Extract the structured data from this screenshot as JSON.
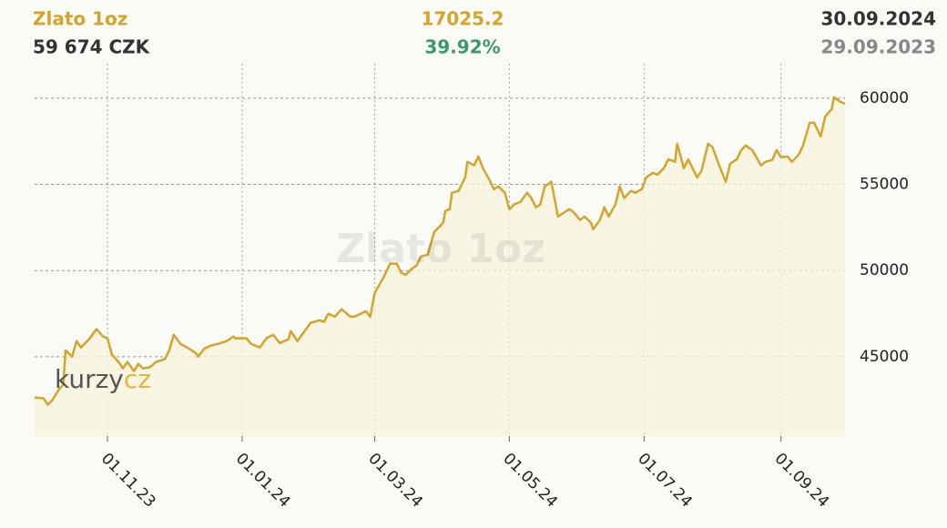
{
  "chart_data": {
    "type": "line",
    "title": "Zlato 1oz",
    "current_price": "59 674 CZK",
    "change": "17025.2",
    "change_percent": "39.92%",
    "end_date": "30.09.2024",
    "start_date": "29.09.2023",
    "logo": {
      "text": "kurzy",
      "suffix": "cz"
    },
    "x": [
      "2023-09-29",
      "2023-10-03",
      "2023-10-05",
      "2023-10-07",
      "2023-10-10",
      "2023-10-12",
      "2023-10-13",
      "2023-10-16",
      "2023-10-18",
      "2023-10-20",
      "2023-10-24",
      "2023-10-27",
      "2023-10-30",
      "2023-11-01",
      "2023-11-03",
      "2023-11-06",
      "2023-11-08",
      "2023-11-10",
      "2023-11-13",
      "2023-11-15",
      "2023-11-17",
      "2023-11-20",
      "2023-11-23",
      "2023-11-27",
      "2023-11-29",
      "2023-12-01",
      "2023-12-04",
      "2023-12-07",
      "2023-12-11",
      "2023-12-12",
      "2023-12-15",
      "2023-12-18",
      "2023-12-21",
      "2023-12-25",
      "2023-12-28",
      "2023-12-29",
      "2024-01-03",
      "2024-01-05",
      "2024-01-09",
      "2024-01-12",
      "2024-01-15",
      "2024-01-18",
      "2024-01-22",
      "2024-01-23",
      "2024-01-26",
      "2024-01-29",
      "2024-02-01",
      "2024-02-05",
      "2024-02-07",
      "2024-02-09",
      "2024-02-12",
      "2024-02-15",
      "2024-02-19",
      "2024-02-21",
      "2024-02-26",
      "2024-02-28",
      "2024-03-01",
      "2024-03-05",
      "2024-03-08",
      "2024-03-11",
      "2024-03-13",
      "2024-03-15",
      "2024-03-18",
      "2024-03-20",
      "2024-03-22",
      "2024-03-25",
      "2024-03-28",
      "2024-04-01",
      "2024-04-02",
      "2024-04-04",
      "2024-04-05",
      "2024-04-08",
      "2024-04-11",
      "2024-04-12",
      "2024-04-15",
      "2024-04-17",
      "2024-04-19",
      "2024-04-22",
      "2024-04-24",
      "2024-04-26",
      "2024-04-29",
      "2024-05-01",
      "2024-05-02",
      "2024-05-03",
      "2024-05-06",
      "2024-05-09",
      "2024-05-11",
      "2024-05-13",
      "2024-05-15",
      "2024-05-17",
      "2024-05-20",
      "2024-05-23",
      "2024-05-25",
      "2024-05-28",
      "2024-05-30",
      "2024-06-02",
      "2024-06-04",
      "2024-06-07",
      "2024-06-08",
      "2024-06-11",
      "2024-06-13",
      "2024-06-15",
      "2024-06-18",
      "2024-06-20",
      "2024-06-22",
      "2024-06-25",
      "2024-06-27",
      "2024-06-30",
      "2024-07-02",
      "2024-07-05",
      "2024-07-07",
      "2024-07-10",
      "2024-07-12",
      "2024-07-15",
      "2024-07-16",
      "2024-07-19",
      "2024-07-21",
      "2024-07-25",
      "2024-07-27",
      "2024-07-30",
      "2024-08-01",
      "2024-08-04",
      "2024-08-07",
      "2024-08-09",
      "2024-08-12",
      "2024-08-14",
      "2024-08-16",
      "2024-08-19",
      "2024-08-23",
      "2024-08-25",
      "2024-08-28",
      "2024-08-30",
      "2024-09-01",
      "2024-09-04",
      "2024-09-06",
      "2024-09-09",
      "2024-09-11",
      "2024-09-14",
      "2024-09-16",
      "2024-09-19",
      "2024-09-21",
      "2024-09-24",
      "2024-09-25",
      "2024-09-28",
      "2024-09-30"
    ],
    "series": [
      {
        "name": "Zlato 1oz",
        "color": "#d4a52a",
        "values": [
          42640,
          42590,
          42220,
          42480,
          43110,
          43380,
          45380,
          45010,
          45910,
          45540,
          46070,
          46600,
          46170,
          46070,
          45120,
          44700,
          44330,
          44700,
          44170,
          44590,
          44330,
          44380,
          44700,
          44860,
          45380,
          46280,
          45750,
          45540,
          45220,
          45010,
          45490,
          45650,
          45750,
          45910,
          46170,
          46070,
          46070,
          45750,
          45540,
          46070,
          46280,
          45800,
          46020,
          46490,
          45910,
          46440,
          46970,
          47120,
          47020,
          47490,
          47330,
          47760,
          47330,
          47330,
          47650,
          47330,
          48710,
          49600,
          50400,
          50400,
          49870,
          49760,
          50130,
          50290,
          50820,
          50920,
          52240,
          52770,
          53460,
          53560,
          54510,
          54620,
          55410,
          56310,
          56100,
          56620,
          55940,
          55250,
          54720,
          54880,
          54510,
          53560,
          53670,
          53830,
          53980,
          54510,
          54200,
          53670,
          53830,
          54880,
          55150,
          53140,
          53300,
          53560,
          53400,
          52930,
          53140,
          52770,
          52400,
          52930,
          53670,
          53140,
          53830,
          54880,
          54200,
          54620,
          54510,
          54720,
          55410,
          55670,
          55570,
          55940,
          56460,
          56310,
          57360,
          55940,
          56460,
          55410,
          55780,
          57360,
          57150,
          56100,
          55150,
          56200,
          56460,
          56990,
          57260,
          56990,
          56100,
          56310,
          56410,
          56990,
          56570,
          56620,
          56310,
          56730,
          57260,
          58580,
          58580,
          57780,
          58940,
          59370,
          60050,
          59790,
          59674
        ]
      }
    ],
    "xlim": [
      "2023-09-29",
      "2024-09-30"
    ],
    "xticks": [
      {
        "value": "2023-11-01",
        "label": "01.11.23"
      },
      {
        "value": "2024-01-01",
        "label": "01.01.24"
      },
      {
        "value": "2024-03-01",
        "label": "01.03.24"
      },
      {
        "value": "2024-05-01",
        "label": "01.05.24"
      },
      {
        "value": "2024-07-01",
        "label": "01.07.24"
      },
      {
        "value": "2024-09-01",
        "label": "01.09.24"
      }
    ],
    "ylim": [
      40400,
      62000
    ],
    "yticks": [
      45000,
      50000,
      55000,
      60000
    ],
    "grid": true,
    "fill_color": "#f6f3dc"
  }
}
